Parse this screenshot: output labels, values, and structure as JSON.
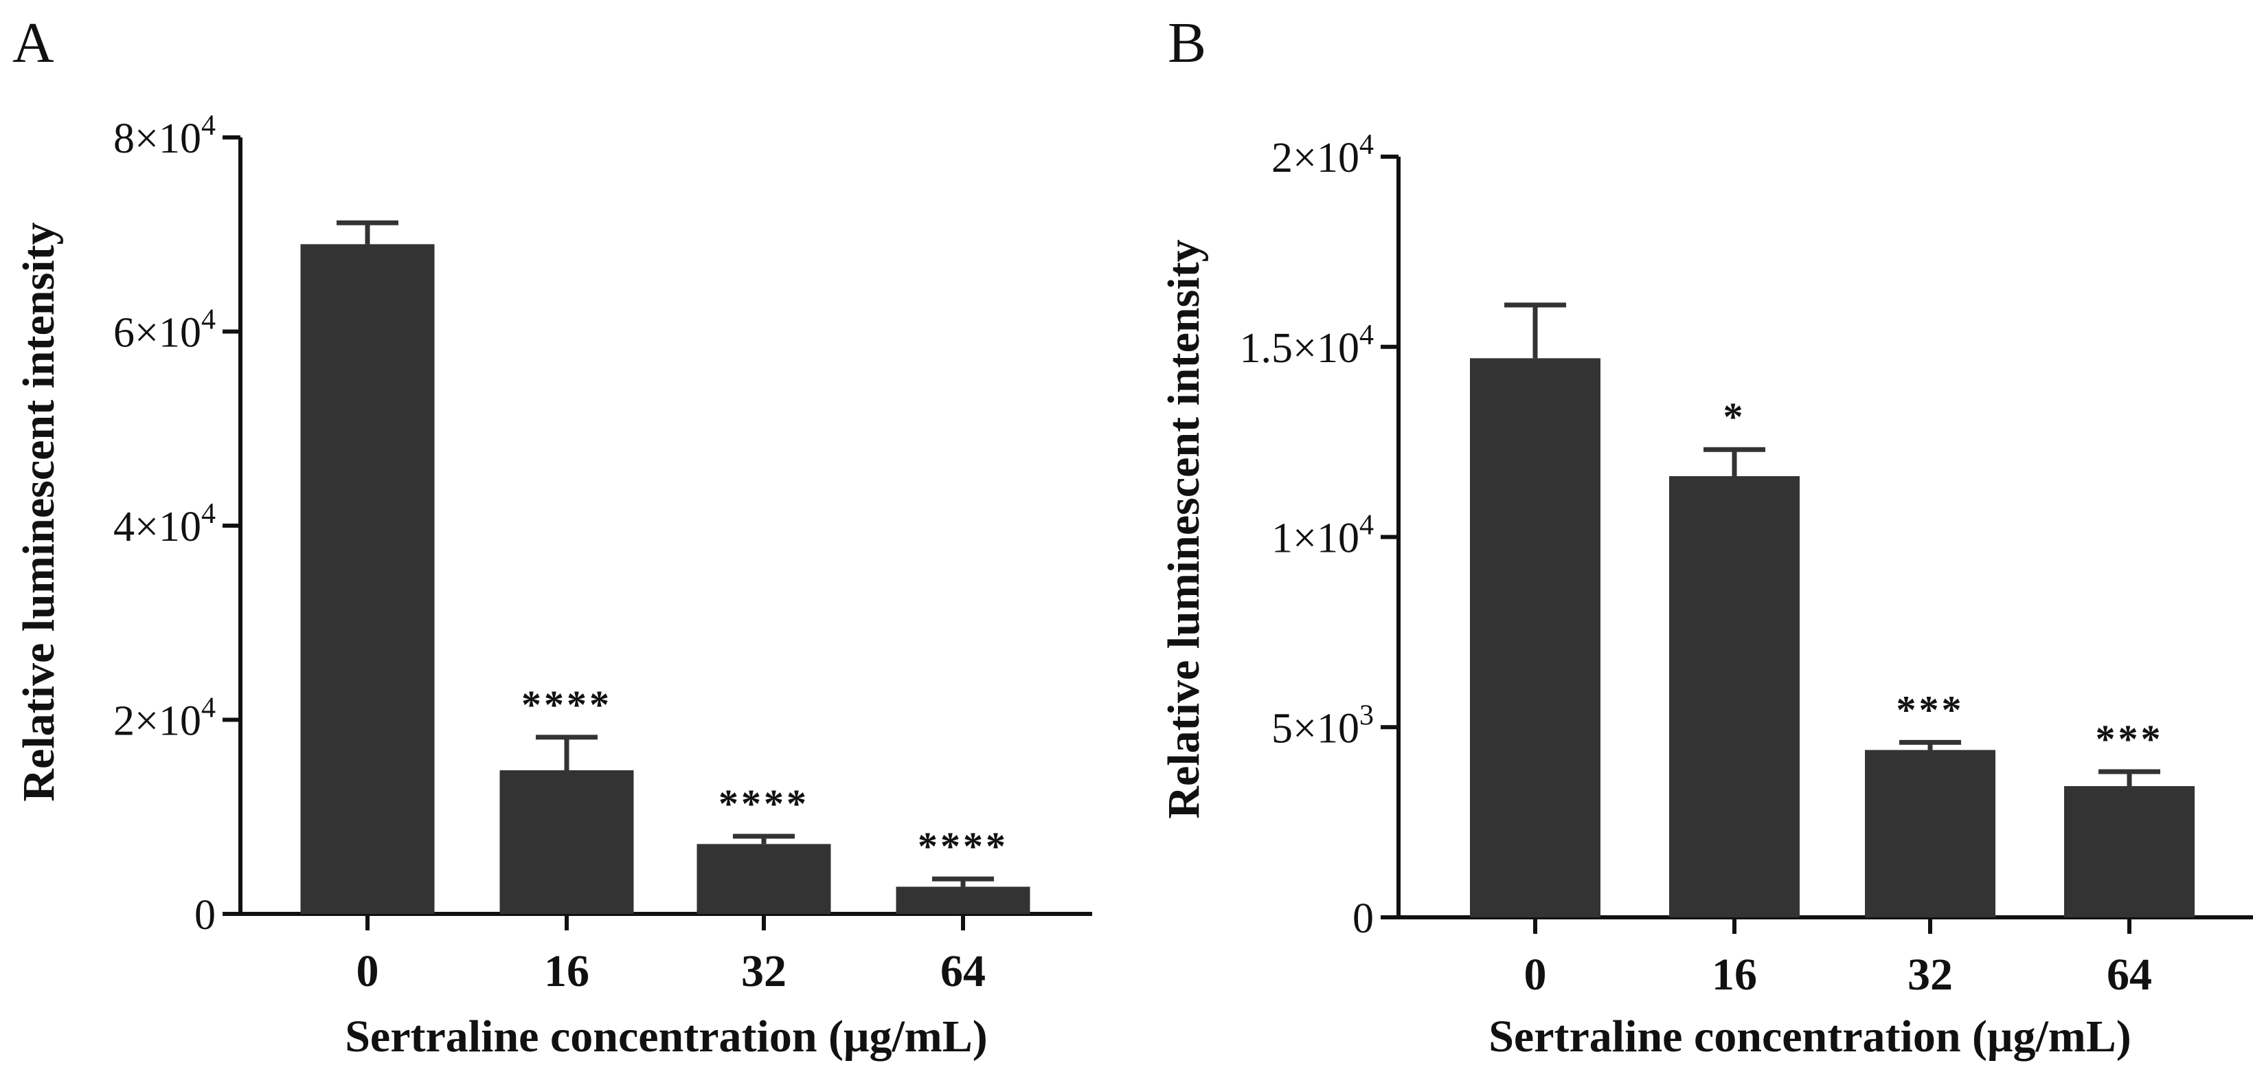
{
  "chart_data": [
    {
      "type": "bar",
      "panel": "A",
      "xlabel": "Sertraline concentration (μg/mL)",
      "ylabel": "Relative luminescent intensity",
      "categories": [
        "0",
        "16",
        "32",
        "64"
      ],
      "values": [
        69000,
        14800,
        7200,
        2800
      ],
      "errors": [
        2200,
        3400,
        800,
        800
      ],
      "significance": [
        "",
        "****",
        "****",
        "****"
      ],
      "ylim": [
        0,
        80000
      ],
      "yticks": [
        {
          "value": 0,
          "mant": "0",
          "exp": ""
        },
        {
          "value": 20000,
          "mant": "2×10",
          "exp": "4"
        },
        {
          "value": 40000,
          "mant": "4×10",
          "exp": "4"
        },
        {
          "value": 60000,
          "mant": "6×10",
          "exp": "4"
        },
        {
          "value": 80000,
          "mant": "8×10",
          "exp": "4"
        }
      ],
      "grid": false
    },
    {
      "type": "bar",
      "panel": "B",
      "xlabel": "Sertraline concentration (μg/mL)",
      "ylabel": "Relative luminescent intensity",
      "categories": [
        "0",
        "16",
        "32",
        "64"
      ],
      "values": [
        14700,
        11600,
        4400,
        3450
      ],
      "errors": [
        1400,
        700,
        200,
        380
      ],
      "significance": [
        "",
        "*",
        "***",
        "***"
      ],
      "ylim": [
        0,
        20000
      ],
      "yticks": [
        {
          "value": 0,
          "mant": "0",
          "exp": ""
        },
        {
          "value": 5000,
          "mant": "5×10",
          "exp": "3"
        },
        {
          "value": 10000,
          "mant": "1×10",
          "exp": "4"
        },
        {
          "value": 15000,
          "mant": "1.5×10",
          "exp": "4"
        },
        {
          "value": 20000,
          "mant": "2×10",
          "exp": "4"
        }
      ],
      "grid": false
    }
  ]
}
